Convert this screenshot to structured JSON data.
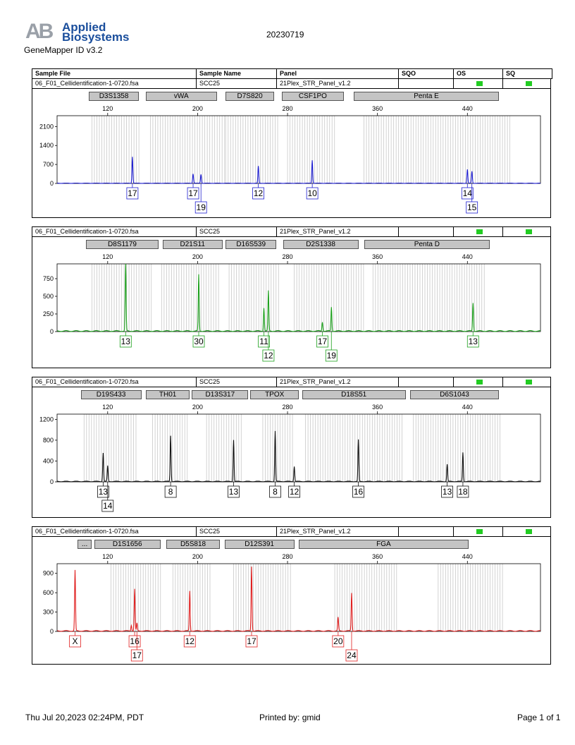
{
  "header": {
    "logo_text": "Applied Biosystems",
    "logo_mark": "AB",
    "app_version": "GeneMapper ID v3.2",
    "report_date": "20230719"
  },
  "table_header": {
    "sample_file": "Sample File",
    "sample_name": "Sample Name",
    "panel": "Panel",
    "sqo": "SQO",
    "os": "OS",
    "sq": "SQ"
  },
  "sample": {
    "file": "06_F01_Cellidentification-1-0720.fsa",
    "name": "SCC25",
    "panel": "21Plex_STR_Panel_v1.2",
    "quality_color": "#22cc22"
  },
  "footer": {
    "datetime": "Thu Jul 20,2023 02:24PM, PDT",
    "printed_by": "Printed by: gmid",
    "page": "Page 1 of 1"
  },
  "chart_data": [
    {
      "type": "line",
      "dye": "blue",
      "color": "#1f1fd0",
      "x_ticks": [
        120,
        200,
        280,
        360,
        440
      ],
      "y_ticks": [
        0,
        700,
        1400,
        2100
      ],
      "xlim": [
        75,
        505
      ],
      "ylim": [
        0,
        2500
      ],
      "markers": [
        {
          "name": "D3S1358",
          "start": 103,
          "end": 148
        },
        {
          "name": "vWA",
          "start": 154,
          "end": 217
        },
        {
          "name": "D7S820",
          "start": 225,
          "end": 268
        },
        {
          "name": "CSF1PO",
          "start": 275,
          "end": 330
        },
        {
          "name": "Penta E",
          "start": 339,
          "end": 468
        }
      ],
      "bins": [
        [
          106,
          149
        ],
        [
          158,
          225
        ],
        [
          225,
          273
        ],
        [
          280,
          322
        ],
        [
          348,
          478
        ]
      ],
      "peaks": [
        {
          "x": 142,
          "height": 980,
          "allele": "17"
        },
        {
          "x": 196,
          "height": 350,
          "allele": "17"
        },
        {
          "x": 203,
          "height": 330,
          "allele": "19"
        },
        {
          "x": 254,
          "height": 630,
          "allele": "12"
        },
        {
          "x": 302,
          "height": 850,
          "allele": "10"
        },
        {
          "x": 440,
          "height": 510,
          "allele": "14"
        },
        {
          "x": 444,
          "height": 440,
          "allele": "15"
        }
      ]
    },
    {
      "type": "line",
      "dye": "green",
      "color": "#1ca01c",
      "x_ticks": [
        120,
        200,
        280,
        360,
        440
      ],
      "y_ticks": [
        0,
        250,
        500,
        750
      ],
      "xlim": [
        75,
        505
      ],
      "ylim": [
        0,
        960
      ],
      "markers": [
        {
          "name": "D8S1179",
          "start": 101,
          "end": 165
        },
        {
          "name": "D21S11",
          "start": 169,
          "end": 222
        },
        {
          "name": "D16S539",
          "start": 225,
          "end": 270
        },
        {
          "name": "D2S1338",
          "start": 276,
          "end": 343
        },
        {
          "name": "Penta D",
          "start": 348,
          "end": 460
        }
      ],
      "bins": [
        [
          106,
          160
        ],
        [
          168,
          220
        ],
        [
          228,
          272
        ],
        [
          286,
          348
        ],
        [
          356,
          455
        ]
      ],
      "peaks": [
        {
          "x": 136,
          "height": 960,
          "allele": "13"
        },
        {
          "x": 201,
          "height": 800,
          "allele": "30"
        },
        {
          "x": 259,
          "height": 330,
          "allele": "11"
        },
        {
          "x": 263,
          "height": 570,
          "allele": "12"
        },
        {
          "x": 311,
          "height": 130,
          "allele": "17"
        },
        {
          "x": 319,
          "height": 340,
          "allele": "19"
        },
        {
          "x": 445,
          "height": 400,
          "allele": "13"
        }
      ]
    },
    {
      "type": "line",
      "dye": "black",
      "color": "#111111",
      "x_ticks": [
        120,
        200,
        280,
        360,
        440
      ],
      "y_ticks": [
        0,
        400,
        800,
        1200
      ],
      "xlim": [
        75,
        505
      ],
      "ylim": [
        0,
        1300
      ],
      "markers": [
        {
          "name": "D19S433",
          "start": 96,
          "end": 150
        },
        {
          "name": "TH01",
          "start": 154,
          "end": 193
        },
        {
          "name": "D13S317",
          "start": 195,
          "end": 245
        },
        {
          "name": "TPOX",
          "start": 247,
          "end": 290
        },
        {
          "name": "D18S51",
          "start": 293,
          "end": 385
        },
        {
          "name": "D6S1043",
          "start": 389,
          "end": 468
        }
      ],
      "bins": [
        [
          99,
          146
        ],
        [
          160,
          192
        ],
        [
          208,
          240
        ],
        [
          258,
          285
        ],
        [
          296,
          382
        ],
        [
          392,
          470
        ]
      ],
      "peaks": [
        {
          "x": 116,
          "height": 550,
          "allele": "13"
        },
        {
          "x": 120,
          "height": 300,
          "allele": "14"
        },
        {
          "x": 176,
          "height": 880,
          "allele": "8"
        },
        {
          "x": 232,
          "height": 800,
          "allele": "13"
        },
        {
          "x": 269,
          "height": 970,
          "allele": "8"
        },
        {
          "x": 286,
          "height": 290,
          "allele": "12"
        },
        {
          "x": 343,
          "height": 800,
          "allele": "16"
        },
        {
          "x": 422,
          "height": 330,
          "allele": "13"
        },
        {
          "x": 436,
          "height": 560,
          "allele": "18"
        }
      ]
    },
    {
      "type": "line",
      "dye": "red",
      "color": "#e02020",
      "x_ticks": [
        120,
        200,
        280,
        360,
        440
      ],
      "y_ticks": [
        0,
        300,
        600,
        900
      ],
      "xlim": [
        75,
        505
      ],
      "ylim": [
        0,
        1050
      ],
      "markers": [
        {
          "name": "...",
          "start": 93,
          "end": 106
        },
        {
          "name": "D1S1656",
          "start": 108,
          "end": 167
        },
        {
          "name": "D5S818",
          "start": 172,
          "end": 220
        },
        {
          "name": "D12S391",
          "start": 224,
          "end": 286
        },
        {
          "name": "FGA",
          "start": 290,
          "end": 441
        }
      ],
      "bins": [
        [
          123,
          167
        ],
        [
          178,
          212
        ],
        [
          232,
          284
        ],
        [
          322,
          378
        ],
        [
          414,
          472
        ]
      ],
      "peaks": [
        {
          "x": 91,
          "height": 940,
          "allele": "X"
        },
        {
          "x": 141,
          "height": 90,
          "allele": ""
        },
        {
          "x": 144,
          "height": 650,
          "allele": "16"
        },
        {
          "x": 146,
          "height": 120,
          "allele": "17"
        },
        {
          "x": 193,
          "height": 620,
          "allele": "12"
        },
        {
          "x": 248,
          "height": 1000,
          "allele": "17"
        },
        {
          "x": 325,
          "height": 210,
          "allele": "20"
        },
        {
          "x": 337,
          "height": 590,
          "allele": "24"
        }
      ]
    }
  ]
}
